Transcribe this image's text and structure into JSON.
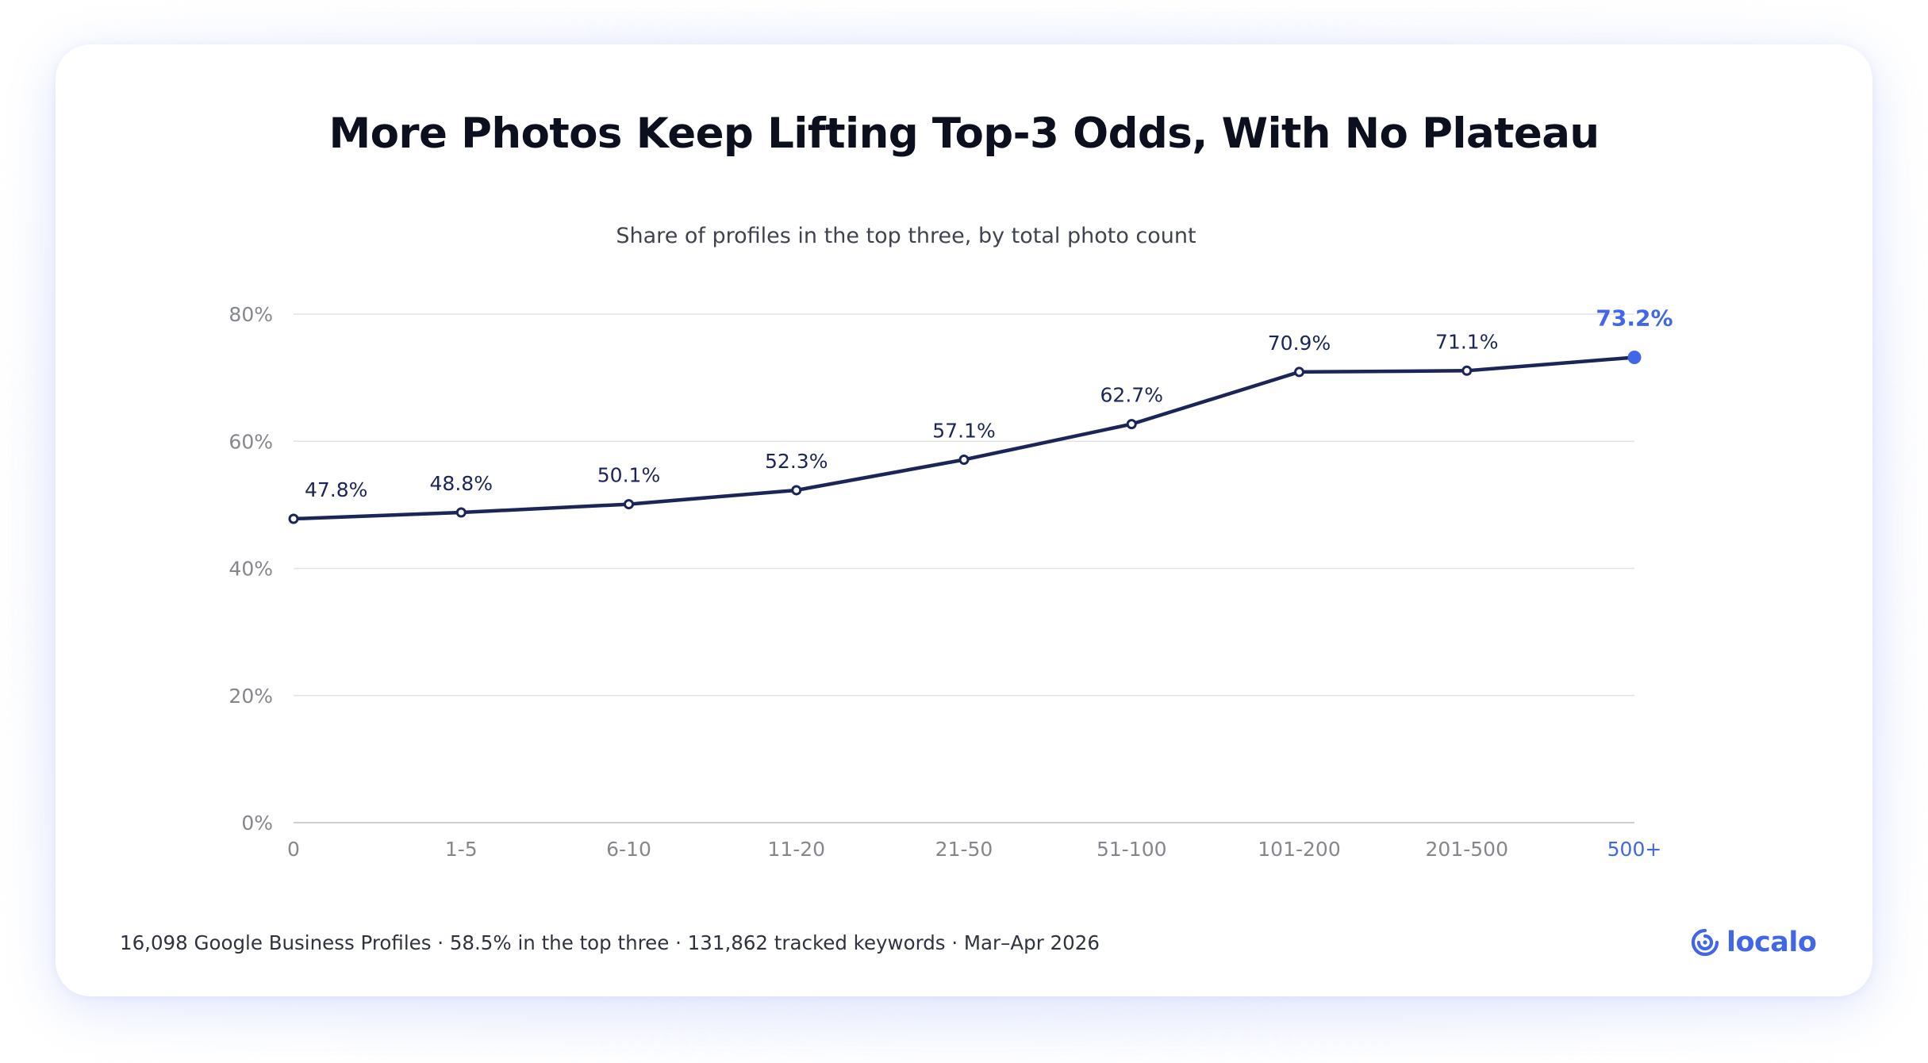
{
  "title": "More Photos Keep Lifting Top-3 Odds, With No Plateau",
  "subtitle": "Share of profiles in the top three, by total photo count",
  "footnote": "16,098 Google Business Profiles · 58.5% in the top three · 131,862 tracked keywords · Mar–Apr 2026",
  "brand": {
    "name": "localo",
    "icon": "location-pin-icon",
    "color": "#4167e8"
  },
  "colors": {
    "line": "#1b2557",
    "highlight": "#4167e8",
    "grid": "#e3e3e6",
    "axis_text": "#85878e"
  },
  "chart_data": {
    "type": "line",
    "categories": [
      "0",
      "1-5",
      "6-10",
      "11-20",
      "21-50",
      "51-100",
      "101-200",
      "201-500",
      "500+"
    ],
    "values": [
      47.8,
      48.8,
      50.1,
      52.3,
      57.1,
      62.7,
      70.9,
      71.1,
      73.2
    ],
    "data_labels": [
      "47.8%",
      "48.8%",
      "50.1%",
      "52.3%",
      "57.1%",
      "62.7%",
      "70.9%",
      "71.1%",
      "73.2%"
    ],
    "y_ticks": [
      0,
      20,
      40,
      60,
      80
    ],
    "y_tick_labels": [
      "0%",
      "20%",
      "40%",
      "60%",
      "80%"
    ],
    "ylim": [
      0,
      80
    ],
    "highlight_index": 8,
    "xlabel": "",
    "ylabel": "",
    "grid": true,
    "legend": "none"
  }
}
